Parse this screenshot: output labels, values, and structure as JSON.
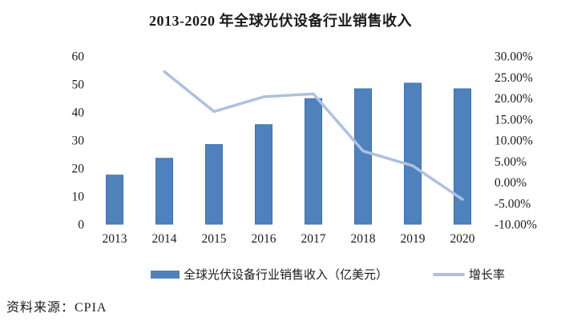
{
  "title": "2013-2020 年全球光伏设备行业销售收入",
  "source_note": "资料来源：CPIA",
  "legend": [
    {
      "label": "全球光伏设备行业销售收入（亿美元）",
      "marker": "bar-swatch"
    },
    {
      "label": "增长率",
      "marker": "line-swatch"
    }
  ],
  "colors": {
    "bar_fill": "#4F81BD",
    "bar_border": "#3E70AB",
    "line": "#AFC0DF",
    "text": "#1b1b1b"
  },
  "chart_data": {
    "type": "bar",
    "subtype": "bar+line dual axis",
    "title": "2013-2020 年全球光伏设备行业销售收入",
    "categories": [
      "2013",
      "2014",
      "2015",
      "2016",
      "2017",
      "2018",
      "2019",
      "2020"
    ],
    "series": [
      {
        "name": "全球光伏设备行业销售收入（亿美元）",
        "type": "bar",
        "axis": "left",
        "values": [
          17.5,
          23.5,
          28.4,
          35.5,
          44.8,
          48.3,
          50.3,
          48.3
        ]
      },
      {
        "name": "增长率",
        "type": "line",
        "axis": "right",
        "unit": "%",
        "values": [
          null,
          26.3,
          16.8,
          20.3,
          21.0,
          7.4,
          3.9,
          -4.1
        ]
      }
    ],
    "left_axis": {
      "min": 0,
      "max": 60,
      "step": 10,
      "ticks": [
        "0",
        "10",
        "20",
        "30",
        "40",
        "50",
        "60"
      ]
    },
    "right_axis": {
      "min": -10,
      "max": 30,
      "step": 5,
      "ticks": [
        "-10.00%",
        "-5.00%",
        "0.00%",
        "5.00%",
        "10.00%",
        "15.00%",
        "20.00%",
        "25.00%",
        "30.00%"
      ]
    },
    "grid": false,
    "axis_lines": false,
    "legend_position": "bottom"
  }
}
